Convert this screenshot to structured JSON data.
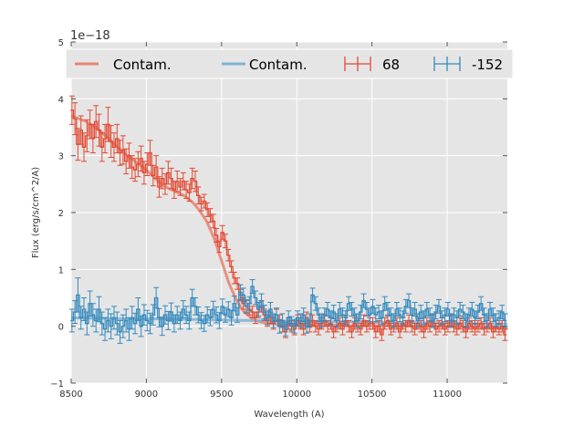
{
  "chart_data": {
    "type": "line",
    "title": "",
    "xlabel": "Wavelength (A)",
    "ylabel": "Flux (erg/s/cm^2/A)",
    "y_offset_label": "1e−18",
    "xlim": [
      8500,
      11400
    ],
    "ylim": [
      -1,
      5
    ],
    "x_ticks": [
      8500,
      9000,
      9500,
      10000,
      10500,
      11000
    ],
    "x_tick_labels": [
      "8500",
      "9000",
      "9500",
      "10000",
      "10500",
      "11000"
    ],
    "y_ticks": [
      -1,
      0,
      1,
      2,
      3,
      4,
      5
    ],
    "y_tick_labels": [
      "−1",
      "0",
      "1",
      "2",
      "3",
      "4",
      "5"
    ],
    "grid": true,
    "legend_position": "top",
    "colors": {
      "red": "#e24a33",
      "blue": "#348abd",
      "contam_red": "#e8836f",
      "contam_blue": "#7fb2d5",
      "background": "#e5e5e5",
      "grid": "#ffffff"
    },
    "series": [
      {
        "name": "Contam.",
        "style": "contam",
        "color": "#e8836f",
        "x": [
          8500,
          8550,
          8600,
          8650,
          8700,
          8750,
          8800,
          8850,
          8900,
          8950,
          9000,
          9050,
          9100,
          9150,
          9200,
          9250,
          9300,
          9350,
          9400,
          9450,
          9500,
          9550,
          9600,
          9650,
          9700,
          9750,
          9800,
          9900,
          10000,
          10200,
          10400,
          10600,
          10800,
          11000,
          11200,
          11400
        ],
        "y": [
          3.7,
          3.65,
          3.6,
          3.52,
          3.42,
          3.3,
          3.17,
          3.05,
          2.95,
          2.85,
          2.75,
          2.62,
          2.5,
          2.42,
          2.36,
          2.3,
          2.2,
          2.05,
          1.85,
          1.55,
          1.15,
          0.75,
          0.45,
          0.25,
          0.14,
          0.08,
          0.05,
          0.03,
          0.02,
          0.02,
          0.01,
          0.01,
          0.0,
          0.0,
          -0.02,
          -0.04
        ]
      },
      {
        "name": "Contam.",
        "style": "contam",
        "color": "#7fb2d5",
        "x": [
          8500,
          8700,
          8900,
          9100,
          9300,
          9500,
          9700,
          9900,
          10100,
          10300,
          10500,
          10700,
          10900,
          11100,
          11300,
          11400
        ],
        "y": [
          0.15,
          0.14,
          0.13,
          0.13,
          0.12,
          0.11,
          0.1,
          0.09,
          0.08,
          0.08,
          0.07,
          0.06,
          0.06,
          0.05,
          0.04,
          0.04
        ]
      },
      {
        "name": "68",
        "style": "errorbar",
        "color": "#e24a33",
        "x": [
          8505,
          8525,
          8545,
          8565,
          8585,
          8605,
          8625,
          8645,
          8665,
          8685,
          8705,
          8725,
          8745,
          8765,
          8785,
          8805,
          8825,
          8845,
          8865,
          8885,
          8905,
          8925,
          8945,
          8965,
          8985,
          9005,
          9025,
          9045,
          9065,
          9085,
          9105,
          9125,
          9145,
          9165,
          9185,
          9205,
          9225,
          9245,
          9265,
          9285,
          9305,
          9325,
          9345,
          9365,
          9385,
          9405,
          9425,
          9445,
          9465,
          9485,
          9505,
          9525,
          9545,
          9565,
          9585,
          9605,
          9625,
          9645,
          9665,
          9685,
          9705,
          9725,
          9745,
          9765,
          9785,
          9805,
          9825,
          9845,
          9865,
          9885,
          9905,
          9925,
          9945,
          9965,
          9985,
          10005,
          10025,
          10045,
          10065,
          10085,
          10105,
          10125,
          10145,
          10165,
          10185,
          10205,
          10225,
          10245,
          10265,
          10285,
          10305,
          10325,
          10345,
          10365,
          10385,
          10405,
          10425,
          10445,
          10465,
          10485,
          10505,
          10525,
          10545,
          10565,
          10585,
          10605,
          10625,
          10645,
          10665,
          10685,
          10705,
          10725,
          10745,
          10765,
          10785,
          10805,
          10825,
          10845,
          10865,
          10885,
          10905,
          10925,
          10945,
          10965,
          10985,
          11005,
          11025,
          11045,
          11065,
          11085,
          11105,
          11125,
          11145,
          11165,
          11185,
          11205,
          11225,
          11245,
          11265,
          11285,
          11305,
          11325,
          11345,
          11365,
          11385
        ],
        "y": [
          3.8,
          3.65,
          3.2,
          3.45,
          3.15,
          3.35,
          3.55,
          3.3,
          3.6,
          3.45,
          3.15,
          3.3,
          3.55,
          3.25,
          3.15,
          3.3,
          3.05,
          3.1,
          2.9,
          3.0,
          2.8,
          2.75,
          2.85,
          2.95,
          2.7,
          2.85,
          3.05,
          2.65,
          2.8,
          2.45,
          2.6,
          2.5,
          2.7,
          2.6,
          2.4,
          2.55,
          2.45,
          2.55,
          2.4,
          2.35,
          2.6,
          2.55,
          2.3,
          2.15,
          2.2,
          2.05,
          1.95,
          1.85,
          1.6,
          1.4,
          1.65,
          1.5,
          1.25,
          1.05,
          0.85,
          0.75,
          0.55,
          0.4,
          0.35,
          0.3,
          0.25,
          0.15,
          0.25,
          0.35,
          0.2,
          0.1,
          0.15,
          0.05,
          0.2,
          0.1,
          0.0,
          -0.1,
          0.05,
          0.0,
          -0.05,
          0.1,
          0.05,
          -0.05,
          0.15,
          0.0,
          0.1,
          0.0,
          -0.05,
          0.05,
          0.1,
          0.0,
          0.05,
          -0.1,
          0.0,
          0.05,
          -0.05,
          0.1,
          0.0,
          -0.1,
          0.05,
          0.0,
          -0.05,
          0.1,
          0.0,
          0.05,
          0.05,
          -0.1,
          0.0,
          -0.15,
          0.05,
          0.1,
          -0.05,
          0.0,
          0.05,
          -0.1,
          0.05,
          0.0,
          0.1,
          0.0,
          -0.05,
          0.05,
          0.0,
          -0.1,
          0.05,
          0.0,
          0.1,
          -0.05,
          0.0,
          0.05,
          -0.05,
          0.0,
          0.1,
          0.0,
          -0.05,
          0.05,
          0.0,
          -0.1,
          0.05,
          0.0,
          -0.05,
          0.0,
          0.05,
          -0.05,
          0.0,
          0.05,
          -0.1,
          0.0,
          -0.05,
          0.0,
          -0.15
        ],
        "err": [
          0.25,
          0.28,
          0.28,
          0.25,
          0.25,
          0.28,
          0.25,
          0.25,
          0.28,
          0.28,
          0.25,
          0.25,
          0.3,
          0.28,
          0.25,
          0.25,
          0.22,
          0.25,
          0.22,
          0.22,
          0.2,
          0.2,
          0.22,
          0.22,
          0.2,
          0.2,
          0.22,
          0.18,
          0.2,
          0.18,
          0.18,
          0.18,
          0.2,
          0.18,
          0.15,
          0.18,
          0.15,
          0.15,
          0.15,
          0.15,
          0.18,
          0.18,
          0.15,
          0.12,
          0.12,
          0.12,
          0.12,
          0.12,
          0.12,
          0.1,
          0.12,
          0.12,
          0.1,
          0.1,
          0.1,
          0.1,
          0.1,
          0.1,
          0.1,
          0.1,
          0.1,
          0.1,
          0.1,
          0.1,
          0.1,
          0.1,
          0.1,
          0.1,
          0.1,
          0.1,
          0.1,
          0.1,
          0.1,
          0.1,
          0.1,
          0.1,
          0.1,
          0.1,
          0.1,
          0.1,
          0.1,
          0.1,
          0.1,
          0.1,
          0.1,
          0.1,
          0.1,
          0.1,
          0.1,
          0.1,
          0.1,
          0.1,
          0.1,
          0.1,
          0.1,
          0.1,
          0.1,
          0.1,
          0.1,
          0.1,
          0.1,
          0.1,
          0.1,
          0.1,
          0.1,
          0.1,
          0.1,
          0.1,
          0.1,
          0.1,
          0.1,
          0.1,
          0.1,
          0.1,
          0.1,
          0.1,
          0.1,
          0.1,
          0.1,
          0.1,
          0.1,
          0.1,
          0.1,
          0.1,
          0.1,
          0.1,
          0.1,
          0.1,
          0.1,
          0.1,
          0.1,
          0.1,
          0.1,
          0.1,
          0.1,
          0.1,
          0.1,
          0.1,
          0.1,
          0.1,
          0.1,
          0.1,
          0.1,
          0.1,
          0.1
        ]
      },
      {
        "name": "-152",
        "style": "errorbar",
        "color": "#348abd",
        "x": [
          8505,
          8525,
          8545,
          8565,
          8585,
          8605,
          8625,
          8645,
          8665,
          8685,
          8705,
          8725,
          8745,
          8765,
          8785,
          8805,
          8825,
          8845,
          8865,
          8885,
          8905,
          8925,
          8945,
          8965,
          8985,
          9005,
          9025,
          9045,
          9065,
          9085,
          9105,
          9125,
          9145,
          9165,
          9185,
          9205,
          9225,
          9245,
          9265,
          9285,
          9305,
          9325,
          9345,
          9365,
          9385,
          9405,
          9425,
          9445,
          9465,
          9485,
          9505,
          9525,
          9545,
          9565,
          9585,
          9605,
          9625,
          9645,
          9665,
          9685,
          9705,
          9725,
          9745,
          9765,
          9785,
          9805,
          9825,
          9845,
          9865,
          9885,
          9905,
          9925,
          9945,
          9965,
          9985,
          10005,
          10025,
          10045,
          10065,
          10085,
          10105,
          10125,
          10145,
          10165,
          10185,
          10205,
          10225,
          10245,
          10265,
          10285,
          10305,
          10325,
          10345,
          10365,
          10385,
          10405,
          10425,
          10445,
          10465,
          10485,
          10505,
          10525,
          10545,
          10565,
          10585,
          10605,
          10625,
          10645,
          10665,
          10685,
          10705,
          10725,
          10745,
          10765,
          10785,
          10805,
          10825,
          10845,
          10865,
          10885,
          10905,
          10925,
          10945,
          10965,
          10985,
          11005,
          11025,
          11045,
          11065,
          11085,
          11105,
          11125,
          11145,
          11165,
          11185,
          11205,
          11225,
          11245,
          11265,
          11285,
          11305,
          11325,
          11345,
          11365,
          11385
        ],
        "y": [
          0.1,
          0.25,
          0.55,
          0.15,
          0.3,
          0.05,
          0.4,
          0.2,
          0.1,
          0.3,
          0.05,
          -0.05,
          0.1,
          0.0,
          0.15,
          0.05,
          -0.1,
          0.0,
          0.1,
          -0.05,
          0.15,
          0.05,
          0.3,
          0.0,
          0.2,
          0.1,
          0.05,
          0.2,
          0.5,
          0.15,
          0.0,
          0.2,
          0.1,
          0.25,
          0.05,
          0.2,
          0.1,
          0.3,
          0.2,
          0.1,
          0.5,
          0.35,
          0.2,
          0.1,
          0.05,
          0.2,
          0.15,
          0.3,
          0.2,
          0.1,
          0.35,
          0.2,
          0.3,
          0.15,
          0.4,
          0.2,
          0.6,
          0.55,
          0.35,
          0.4,
          0.7,
          0.5,
          0.3,
          0.45,
          0.25,
          0.15,
          0.3,
          0.1,
          0.2,
          0.0,
          0.1,
          -0.05,
          0.15,
          0.05,
          0.0,
          0.15,
          0.1,
          0.2,
          0.0,
          0.1,
          0.55,
          0.4,
          0.2,
          0.1,
          0.2,
          0.3,
          0.15,
          0.25,
          0.1,
          0.3,
          0.2,
          0.15,
          0.4,
          0.3,
          0.2,
          0.1,
          0.25,
          0.45,
          0.3,
          0.2,
          0.35,
          0.2,
          0.25,
          0.15,
          0.4,
          0.3,
          0.2,
          0.1,
          0.3,
          0.2,
          0.15,
          0.35,
          0.45,
          0.2,
          0.3,
          0.1,
          0.25,
          0.15,
          0.3,
          0.2,
          0.1,
          0.25,
          0.35,
          0.15,
          0.2,
          0.3,
          0.1,
          0.2,
          0.15,
          0.3,
          0.25,
          0.1,
          0.2,
          0.3,
          0.15,
          0.25,
          0.4,
          0.2,
          0.1,
          0.3,
          0.2,
          0.1,
          0.15,
          0.25,
          0.1
        ],
        "err": [
          0.2,
          0.2,
          0.3,
          0.2,
          0.2,
          0.2,
          0.22,
          0.2,
          0.2,
          0.22,
          0.2,
          0.2,
          0.2,
          0.22,
          0.2,
          0.2,
          0.2,
          0.2,
          0.2,
          0.2,
          0.2,
          0.18,
          0.2,
          0.18,
          0.18,
          0.18,
          0.18,
          0.18,
          0.18,
          0.16,
          0.16,
          0.16,
          0.16,
          0.16,
          0.15,
          0.15,
          0.15,
          0.15,
          0.15,
          0.15,
          0.15,
          0.15,
          0.14,
          0.14,
          0.14,
          0.14,
          0.14,
          0.14,
          0.14,
          0.14,
          0.13,
          0.13,
          0.13,
          0.13,
          0.13,
          0.13,
          0.13,
          0.12,
          0.12,
          0.12,
          0.12,
          0.12,
          0.12,
          0.12,
          0.12,
          0.12,
          0.12,
          0.12,
          0.12,
          0.12,
          0.12,
          0.12,
          0.12,
          0.12,
          0.12,
          0.12,
          0.12,
          0.12,
          0.12,
          0.12,
          0.12,
          0.12,
          0.12,
          0.12,
          0.12,
          0.12,
          0.12,
          0.12,
          0.12,
          0.12,
          0.12,
          0.12,
          0.12,
          0.12,
          0.12,
          0.12,
          0.12,
          0.12,
          0.12,
          0.12,
          0.12,
          0.12,
          0.12,
          0.12,
          0.12,
          0.12,
          0.12,
          0.12,
          0.12,
          0.12,
          0.12,
          0.12,
          0.12,
          0.12,
          0.12,
          0.12,
          0.12,
          0.12,
          0.12,
          0.12,
          0.12,
          0.12,
          0.12,
          0.12,
          0.12,
          0.12,
          0.12,
          0.12,
          0.12,
          0.12,
          0.12,
          0.12,
          0.12,
          0.12,
          0.12,
          0.12,
          0.12,
          0.12,
          0.12,
          0.12,
          0.12,
          0.12,
          0.12,
          0.12,
          0.12
        ]
      }
    ]
  }
}
